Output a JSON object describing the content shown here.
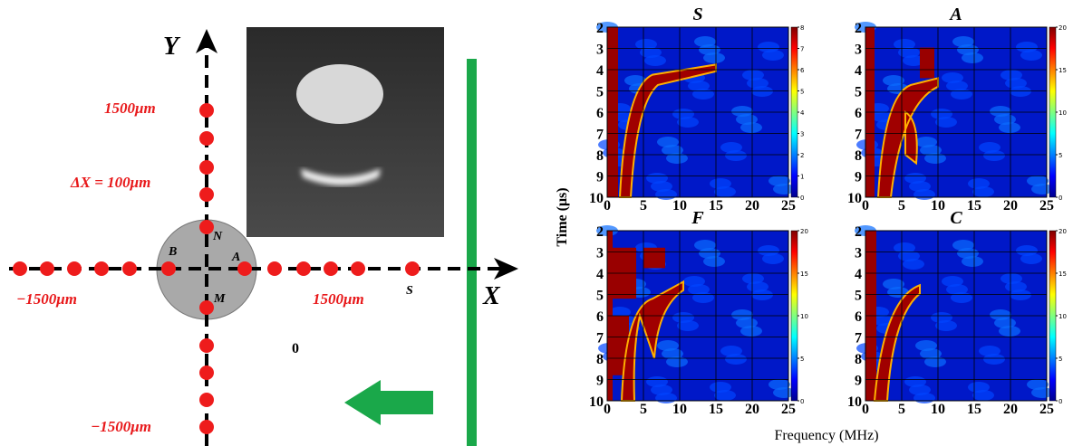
{
  "diagram": {
    "y_axis": "Y",
    "x_axis": "X",
    "y_top": "1500μm",
    "spacing": "ΔX = 100μm",
    "x_left": "−1500μm",
    "x_right": "1500μm",
    "y_bottom": "−1500μm",
    "labels": {
      "b": "B",
      "a": "A",
      "n": "N",
      "m": "M",
      "s": "S",
      "zero": "0"
    }
  },
  "spectrograms": {
    "ylabel": "Time (μs)",
    "xlabel": "Frequency (MHz)",
    "xlim": [
      0,
      25
    ],
    "ylim": [
      2,
      10
    ],
    "xticks": [
      0,
      5,
      10,
      15,
      20,
      25
    ],
    "yticks": [
      2,
      3,
      4,
      5,
      6,
      7,
      8,
      9,
      10
    ],
    "panels": [
      {
        "title": "S",
        "clim": [
          0,
          8
        ],
        "cticks": [
          0,
          1,
          2,
          3,
          4,
          5,
          6,
          7,
          8
        ]
      },
      {
        "title": "A",
        "clim": [
          0,
          20
        ],
        "cticks": [
          0,
          5,
          10,
          15,
          20
        ]
      },
      {
        "title": "F",
        "clim": [
          0,
          20
        ],
        "cticks": [
          0,
          5,
          10,
          15,
          20
        ]
      },
      {
        "title": "C",
        "clim": [
          0,
          20
        ],
        "cticks": [
          0,
          5,
          10,
          15,
          20
        ]
      }
    ]
  }
}
